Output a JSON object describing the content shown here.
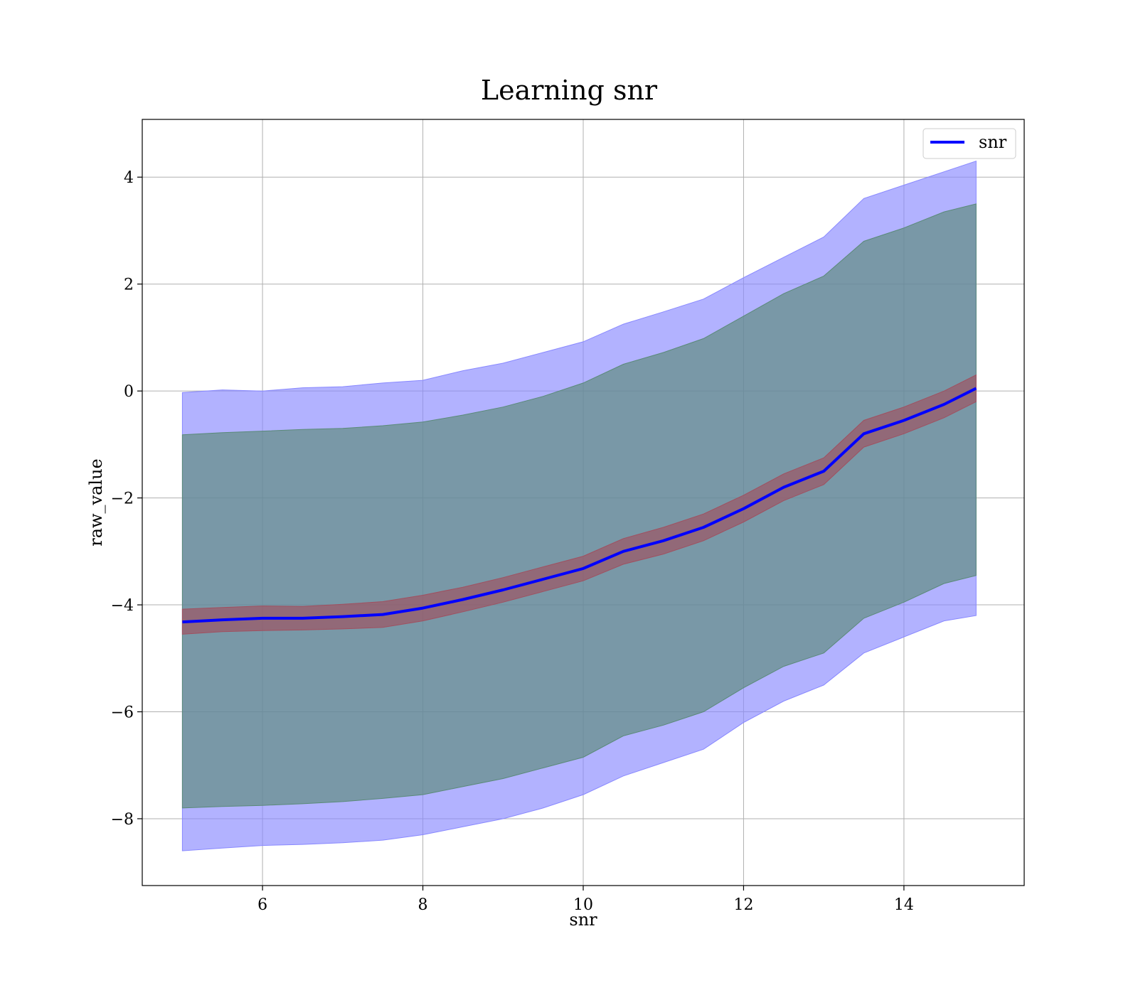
{
  "chart_data": {
    "type": "area",
    "title": "Learning snr",
    "xlabel": "snr",
    "ylabel": "raw_value",
    "xlim": [
      4.5,
      15.5
    ],
    "ylim": [
      -9.25,
      5.08
    ],
    "xticks": [
      6,
      8,
      10,
      12,
      14
    ],
    "yticks": [
      4,
      2,
      0,
      -2,
      -4,
      -6,
      -8
    ],
    "xtick_labels": [
      "6",
      "8",
      "10",
      "12",
      "14"
    ],
    "ytick_labels": [
      "4",
      "2",
      "0",
      "−2",
      "−4",
      "−6",
      "−8"
    ],
    "grid": true,
    "legend": {
      "position": "top-right",
      "entries": [
        {
          "label": "snr",
          "color": "#0000ff"
        }
      ]
    },
    "x": [
      5.0,
      5.5,
      6.0,
      6.5,
      7.0,
      7.5,
      8.0,
      8.5,
      9.0,
      9.5,
      10.0,
      10.5,
      11.0,
      11.5,
      12.0,
      12.5,
      13.0,
      13.5,
      14.0,
      14.5,
      14.9
    ],
    "series": [
      {
        "name": "snr",
        "color": "#0000ff",
        "values": [
          -4.32,
          -4.28,
          -4.25,
          -4.25,
          -4.22,
          -4.18,
          -4.06,
          -3.9,
          -3.72,
          -3.52,
          -3.32,
          -3.0,
          -2.8,
          -2.55,
          -2.2,
          -1.8,
          -1.5,
          -0.8,
          -0.55,
          -0.25,
          0.05
        ]
      }
    ],
    "bands": [
      {
        "color": "#8888ff",
        "lower": [
          -8.6,
          -8.55,
          -8.5,
          -8.48,
          -8.45,
          -8.4,
          -8.3,
          -8.15,
          -8.0,
          -7.8,
          -7.55,
          -7.2,
          -6.95,
          -6.7,
          -6.2,
          -5.8,
          -5.5,
          -4.9,
          -4.6,
          -4.3,
          -4.2
        ],
        "upper": [
          -0.03,
          0.02,
          0.0,
          0.06,
          0.08,
          0.15,
          0.2,
          0.38,
          0.52,
          0.72,
          0.92,
          1.25,
          1.48,
          1.72,
          2.12,
          2.5,
          2.88,
          3.6,
          3.85,
          4.1,
          4.3
        ]
      },
      {
        "color": "#5a8a78",
        "lower": [
          -7.8,
          -7.77,
          -7.75,
          -7.72,
          -7.68,
          -7.62,
          -7.55,
          -7.4,
          -7.25,
          -7.05,
          -6.85,
          -6.45,
          -6.25,
          -6.0,
          -5.55,
          -5.15,
          -4.9,
          -4.25,
          -3.95,
          -3.6,
          -3.45
        ],
        "upper": [
          -0.82,
          -0.78,
          -0.75,
          -0.72,
          -0.7,
          -0.65,
          -0.58,
          -0.45,
          -0.3,
          -0.1,
          0.15,
          0.5,
          0.72,
          0.98,
          1.4,
          1.82,
          2.15,
          2.8,
          3.05,
          3.35,
          3.5
        ]
      },
      {
        "color": "#a05060",
        "lower": [
          -4.55,
          -4.5,
          -4.48,
          -4.47,
          -4.45,
          -4.42,
          -4.3,
          -4.13,
          -3.95,
          -3.75,
          -3.55,
          -3.24,
          -3.05,
          -2.8,
          -2.45,
          -2.05,
          -1.75,
          -1.05,
          -0.8,
          -0.5,
          -0.2
        ],
        "upper": [
          -4.08,
          -4.05,
          -4.02,
          -4.03,
          -3.99,
          -3.94,
          -3.82,
          -3.67,
          -3.49,
          -3.29,
          -3.09,
          -2.76,
          -2.55,
          -2.3,
          -1.95,
          -1.55,
          -1.25,
          -0.55,
          -0.3,
          0.0,
          0.3
        ]
      }
    ]
  }
}
